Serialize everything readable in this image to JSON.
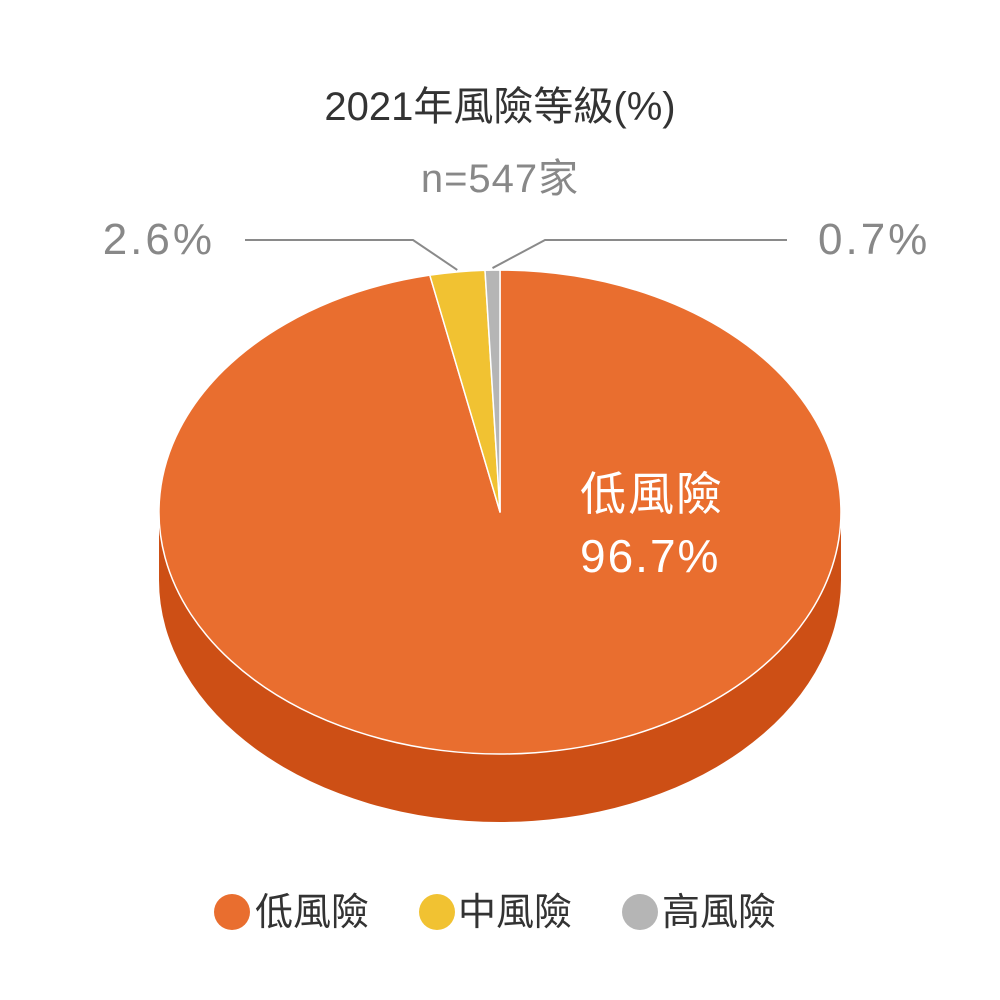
{
  "chart_data": {
    "type": "pie",
    "style": "3d",
    "title": "2021年風險等級(%)",
    "subtitle": "n=547家",
    "categories": [
      "低風險",
      "中風險",
      "高風險"
    ],
    "values": [
      96.7,
      2.6,
      0.7
    ],
    "value_labels": [
      "96.7%",
      "2.6%",
      "0.7%"
    ],
    "colors": [
      "#E96E2F",
      "#F1C232",
      "#B5B5B5"
    ],
    "side_color": "#CD4F15",
    "legend": "bottom"
  }
}
